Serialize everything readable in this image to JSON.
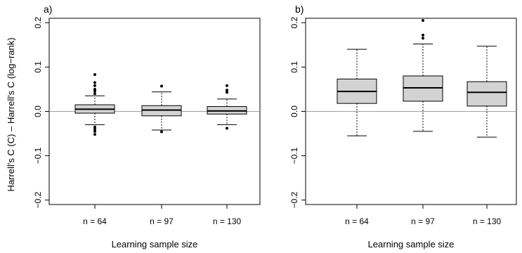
{
  "colors": {
    "box_fill": "#d3d3d3",
    "reference_line": "#a0a0a0",
    "ink": "#000000"
  },
  "shared": {
    "ylabel": "Harrell's C (C) – Harrell's C (log−rank)",
    "xlabel": "Learning sample size",
    "yticks": [
      -0.2,
      -0.1,
      0.0,
      0.1,
      0.2
    ],
    "ytick_labels": [
      "−0.2",
      "−0.1",
      "0.0",
      "0.1",
      "0.2"
    ]
  },
  "chart_data": [
    {
      "type": "box",
      "panel_label": "a)",
      "categories": [
        "n = 64",
        "n = 97",
        "n = 130"
      ],
      "xlabel": "Learning sample size",
      "ylabel": "Harrell's C (C) – Harrell's C (log−rank)",
      "ylim": [
        -0.21,
        0.21
      ],
      "reference_line": 0,
      "boxes": [
        {
          "whisker_low": -0.03,
          "q1": -0.004,
          "median": 0.005,
          "q3": 0.015,
          "whisker_high": 0.035,
          "outliers": [
            -0.035,
            -0.04,
            -0.045,
            -0.052,
            0.04,
            0.046,
            0.05,
            0.058,
            0.065,
            0.083
          ]
        },
        {
          "whisker_low": -0.042,
          "q1": -0.01,
          "median": 0.003,
          "q3": 0.013,
          "whisker_high": 0.044,
          "outliers": [
            -0.046,
            0.057
          ]
        },
        {
          "whisker_low": -0.03,
          "q1": -0.006,
          "median": 0.001,
          "q3": 0.011,
          "whisker_high": 0.028,
          "outliers": [
            -0.038,
            0.043,
            0.048,
            0.058
          ]
        }
      ]
    },
    {
      "type": "box",
      "panel_label": "b)",
      "categories": [
        "n = 64",
        "n = 97",
        "n = 130"
      ],
      "xlabel": "Learning sample size",
      "ylim": [
        -0.21,
        0.21
      ],
      "reference_line": 0,
      "boxes": [
        {
          "whisker_low": -0.055,
          "q1": 0.018,
          "median": 0.045,
          "q3": 0.073,
          "whisker_high": 0.14,
          "outliers": []
        },
        {
          "whisker_low": -0.045,
          "q1": 0.023,
          "median": 0.053,
          "q3": 0.08,
          "whisker_high": 0.152,
          "outliers": [
            0.165,
            0.172,
            0.205
          ]
        },
        {
          "whisker_low": -0.058,
          "q1": 0.012,
          "median": 0.043,
          "q3": 0.067,
          "whisker_high": 0.147,
          "outliers": []
        }
      ]
    }
  ]
}
